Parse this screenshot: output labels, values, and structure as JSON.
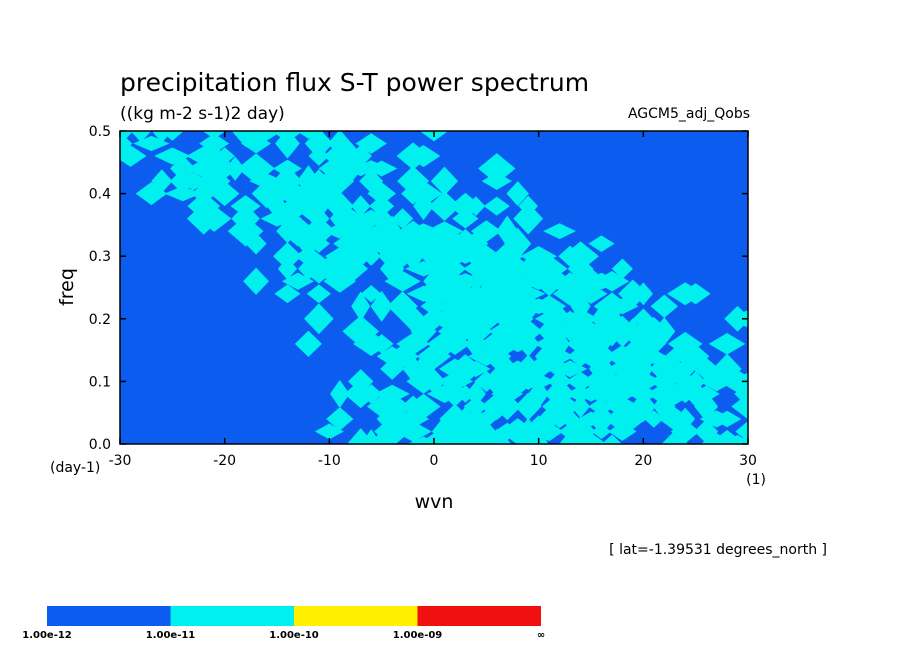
{
  "chart_data": {
    "type": "heatmap",
    "title": "precipitation flux S-T power spectrum",
    "units_label": "((kg m-2 s-1)2 day)",
    "run_label": "AGCM5_adj_Qobs",
    "xlabel": "wvn",
    "ylabel": "freq",
    "x_unit": "(1)",
    "y_unit": "(day-1)",
    "xlim": [
      -30,
      30
    ],
    "ylim": [
      0,
      0.5
    ],
    "x_ticks": [
      "-30",
      "-20",
      "-10",
      "0",
      "10",
      "20",
      "30"
    ],
    "y_ticks": [
      "0.0",
      "0.1",
      "0.2",
      "0.3",
      "0.4",
      "0.5"
    ],
    "annotation": "[ lat=-1.39531 degrees_north ]",
    "levels": [
      "1.00e-12",
      "1.00e-11",
      "1.00e-10",
      "1.00e-09",
      "∞"
    ],
    "level_colors": [
      "#0c5cf0",
      "#00f0f0",
      "#fff000",
      "#f01010"
    ],
    "background_color": "#ffffff"
  }
}
